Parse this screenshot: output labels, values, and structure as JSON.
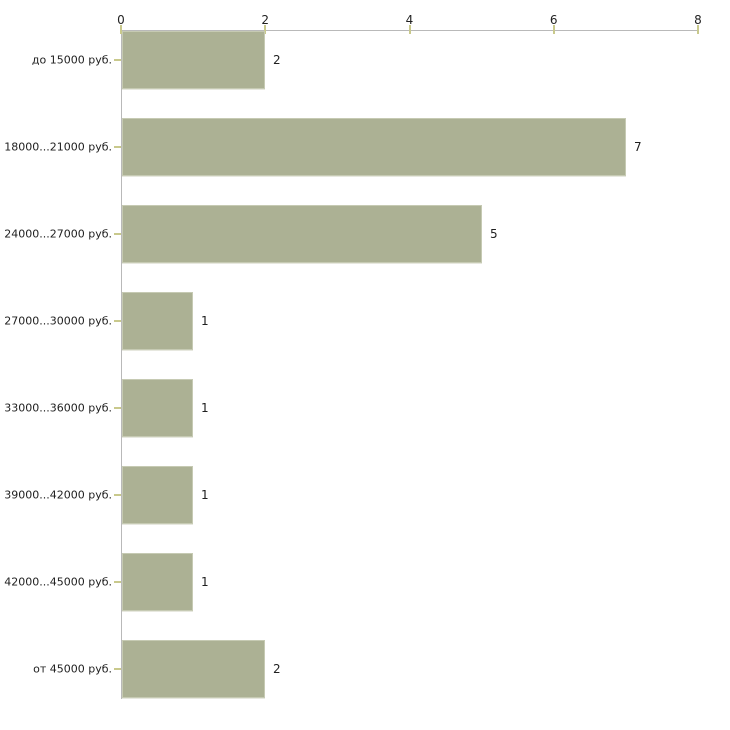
{
  "chart_data": {
    "type": "bar",
    "orientation": "horizontal",
    "title": "",
    "categories": [
      "до 15000 руб.",
      "18000...21000 руб.",
      "24000...27000 руб.",
      "27000...30000 руб.",
      "33000...36000 руб.",
      "39000...42000 руб.",
      "42000...45000 руб.",
      "от 45000 руб."
    ],
    "values": [
      2,
      7,
      5,
      1,
      1,
      1,
      1,
      2
    ],
    "xlim": [
      0,
      8
    ],
    "x_ticks": [
      0,
      2,
      4,
      6,
      8
    ],
    "x_axis_position": "top",
    "grid": false,
    "legend_position": "none",
    "value_labels_shown": true,
    "colors": {
      "background": "#ffffff",
      "bar_fill": "#acb194",
      "bar_edge": "#c6cab3",
      "bar_shadow": "#e7e8df",
      "axis_line": "#b9b9b9",
      "tick_mark": "#c9c98c",
      "text": "#1f1f1f"
    }
  }
}
